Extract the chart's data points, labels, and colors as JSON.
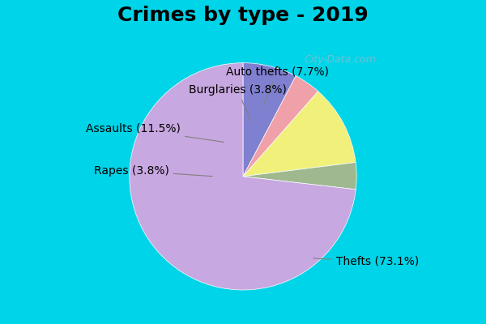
{
  "title": "Crimes by type - 2019",
  "labels": [
    "Thefts",
    "Assaults",
    "Auto thefts",
    "Burglaries",
    "Rapes"
  ],
  "values": [
    73.1,
    11.5,
    7.7,
    3.8,
    3.8
  ],
  "colors": [
    "#c8a8e0",
    "#f0f07a",
    "#8080d0",
    "#f0a0a8",
    "#a0b890"
  ],
  "background_top": "#00d4e8",
  "background_main": "#d8eed8",
  "label_texts": [
    "Thefts (73.1%)",
    "Assaults (11.5%)",
    "Auto thefts (7.7%)",
    "Burglaries (3.8%)",
    "Rapes (3.8%)"
  ],
  "title_fontsize": 18,
  "label_fontsize": 10,
  "watermark": "City-Data.com"
}
